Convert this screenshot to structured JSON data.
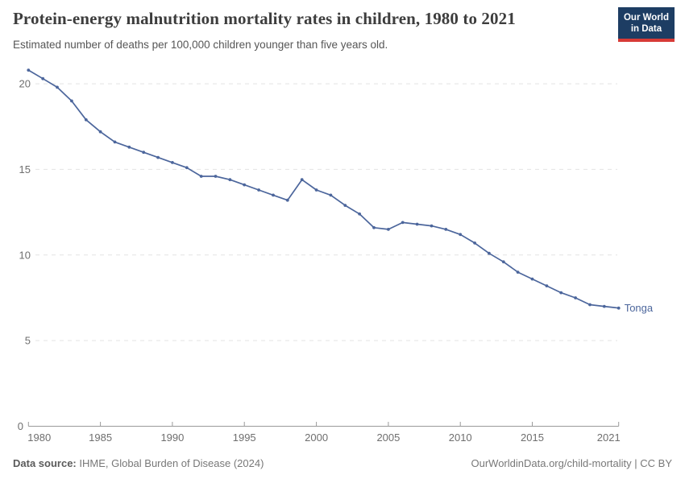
{
  "logo": {
    "line1": "Our World",
    "line2": "in Data"
  },
  "chart_data": {
    "type": "line",
    "title": "Protein-energy malnutrition mortality rates in children, 1980 to 2021",
    "subtitle": "Estimated number of deaths per 100,000 children younger than five years old.",
    "x": [
      1980,
      1981,
      1982,
      1983,
      1984,
      1985,
      1986,
      1987,
      1988,
      1989,
      1990,
      1991,
      1992,
      1993,
      1994,
      1995,
      1996,
      1997,
      1998,
      1999,
      2000,
      2001,
      2002,
      2003,
      2004,
      2005,
      2006,
      2007,
      2008,
      2009,
      2010,
      2011,
      2012,
      2013,
      2014,
      2015,
      2016,
      2017,
      2018,
      2019,
      2020,
      2021
    ],
    "series": [
      {
        "name": "Tonga",
        "values": [
          20.8,
          20.3,
          19.8,
          19.0,
          17.9,
          17.2,
          16.6,
          16.3,
          16.0,
          15.7,
          15.4,
          15.1,
          14.6,
          14.6,
          14.4,
          14.1,
          13.8,
          13.5,
          13.2,
          14.4,
          13.8,
          13.5,
          12.9,
          12.4,
          11.6,
          11.5,
          11.9,
          11.8,
          11.7,
          11.5,
          11.2,
          10.7,
          10.1,
          9.6,
          9.0,
          8.6,
          8.2,
          7.8,
          7.5,
          7.1,
          7.0,
          6.9
        ]
      }
    ],
    "x_ticks": [
      1980,
      1985,
      1990,
      1995,
      2000,
      2005,
      2010,
      2015,
      2021
    ],
    "y_ticks": [
      0,
      5,
      10,
      15,
      20
    ],
    "xlim": [
      1980,
      2021
    ],
    "ylim": [
      0,
      21.5
    ],
    "grid": "horizontal-dashed",
    "legend": "end-of-line-label",
    "line_color": "#4c669c",
    "label_color": "#4c669c",
    "xlabel": "",
    "ylabel": ""
  },
  "footer": {
    "source_bold": "Data source:",
    "source_rest": " IHME, Global Burden of Disease (2024)",
    "credit": "OurWorldinData.org/child-mortality | CC BY"
  }
}
